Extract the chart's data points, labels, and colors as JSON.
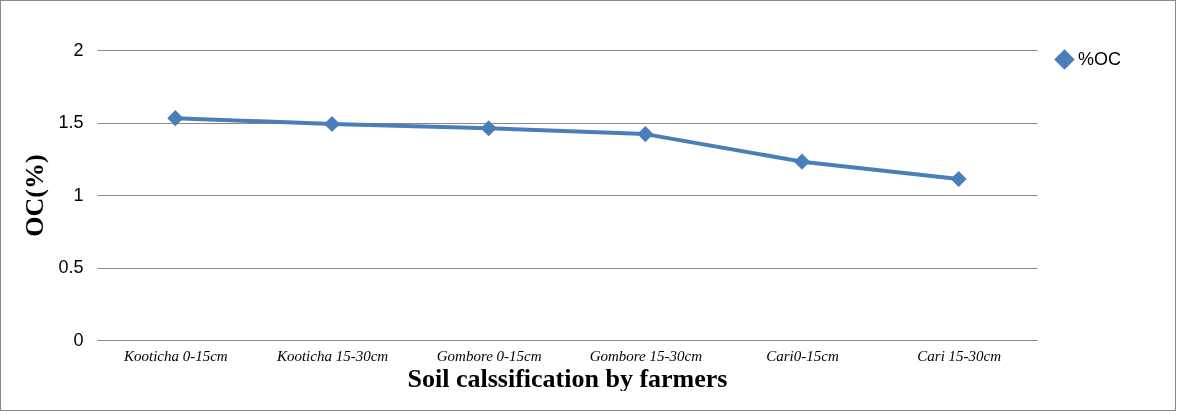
{
  "chart_data": {
    "type": "line",
    "xlabel": "Soil calssification by farmers",
    "ylabel": "OC(%)",
    "categories": [
      "Kooticha 0-15cm",
      "Kooticha 15-30cm",
      "Gombore 0-15cm",
      "Gombore 15-30cm",
      "Cari0-15cm",
      "Cari 15-30cm"
    ],
    "series": [
      {
        "name": "%OC",
        "color": "#4a7ebb",
        "values": [
          1.53,
          1.49,
          1.46,
          1.42,
          1.23,
          1.11
        ]
      }
    ],
    "ylim": [
      0,
      2
    ],
    "yticks": [
      0,
      0.5,
      1,
      1.5,
      2
    ],
    "grid": "y",
    "legend": "right",
    "marker": "diamond",
    "line_style": "solid"
  }
}
